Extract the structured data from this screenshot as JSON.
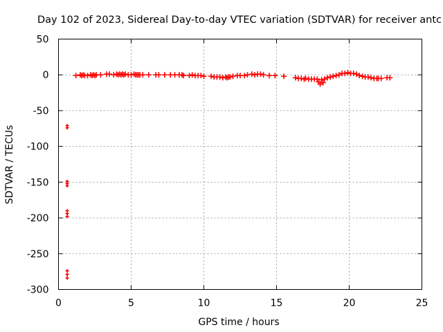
{
  "chart_data": {
    "type": "scatter",
    "title": "Day 102 of 2023, Sidereal Day-to-day VTEC variation (SDTVAR) for receiver antc",
    "xlabel": "GPS time / hours",
    "ylabel": "SDTVAR / TECUs",
    "xlim": [
      0,
      25
    ],
    "ylim": [
      -300,
      50
    ],
    "xticks": [
      0,
      5,
      10,
      15,
      20,
      25
    ],
    "yticks": [
      50,
      0,
      -50,
      -100,
      -150,
      -200,
      -250,
      -300
    ],
    "grid": true,
    "marker": "plus",
    "color": "#ff0000",
    "series": [
      {
        "name": "SDTVAR",
        "points": [
          [
            0.6,
            -71
          ],
          [
            0.6,
            -74
          ],
          [
            0.6,
            -149
          ],
          [
            0.6,
            -152
          ],
          [
            0.6,
            -155
          ],
          [
            0.6,
            -190
          ],
          [
            0.6,
            -194
          ],
          [
            0.6,
            -198
          ],
          [
            0.6,
            -274
          ],
          [
            0.6,
            -279
          ],
          [
            0.6,
            -284
          ],
          [
            1.2,
            -1
          ],
          [
            1.5,
            0
          ],
          [
            1.6,
            -1
          ],
          [
            1.7,
            0
          ],
          [
            1.8,
            -1
          ],
          [
            2.0,
            -1
          ],
          [
            2.2,
            0
          ],
          [
            2.3,
            -1
          ],
          [
            2.4,
            0
          ],
          [
            2.5,
            -1
          ],
          [
            2.6,
            0
          ],
          [
            2.9,
            0
          ],
          [
            3.3,
            1
          ],
          [
            3.5,
            1
          ],
          [
            3.8,
            0
          ],
          [
            4.0,
            1
          ],
          [
            4.1,
            0
          ],
          [
            4.2,
            1
          ],
          [
            4.3,
            0
          ],
          [
            4.4,
            1
          ],
          [
            4.5,
            0
          ],
          [
            4.6,
            1
          ],
          [
            4.8,
            0
          ],
          [
            5.0,
            0
          ],
          [
            5.2,
            1
          ],
          [
            5.3,
            0
          ],
          [
            5.4,
            0
          ],
          [
            5.5,
            0
          ],
          [
            5.6,
            0
          ],
          [
            5.8,
            0
          ],
          [
            6.2,
            0
          ],
          [
            6.7,
            0
          ],
          [
            6.9,
            0
          ],
          [
            7.3,
            0
          ],
          [
            7.7,
            0
          ],
          [
            8.0,
            0
          ],
          [
            8.3,
            0
          ],
          [
            8.5,
            0
          ],
          [
            8.6,
            -1
          ],
          [
            9.0,
            -1
          ],
          [
            9.2,
            0
          ],
          [
            9.4,
            -1
          ],
          [
            9.6,
            -1
          ],
          [
            9.8,
            -1
          ],
          [
            10.0,
            -2
          ],
          [
            10.5,
            -2
          ],
          [
            10.7,
            -3
          ],
          [
            10.9,
            -3
          ],
          [
            11.1,
            -3
          ],
          [
            11.3,
            -4
          ],
          [
            11.5,
            -3
          ],
          [
            11.6,
            -4
          ],
          [
            11.7,
            -3
          ],
          [
            11.8,
            -3
          ],
          [
            12.0,
            -2
          ],
          [
            12.3,
            -1
          ],
          [
            12.5,
            -1
          ],
          [
            12.8,
            -1
          ],
          [
            13.0,
            0
          ],
          [
            13.3,
            1
          ],
          [
            13.5,
            0
          ],
          [
            13.7,
            1
          ],
          [
            13.9,
            1
          ],
          [
            14.1,
            0
          ],
          [
            14.5,
            -1
          ],
          [
            14.9,
            -1
          ],
          [
            15.5,
            -2
          ],
          [
            16.3,
            -4
          ],
          [
            16.5,
            -5
          ],
          [
            16.7,
            -5
          ],
          [
            16.9,
            -6
          ],
          [
            17.0,
            -5
          ],
          [
            17.2,
            -6
          ],
          [
            17.4,
            -6
          ],
          [
            17.6,
            -6
          ],
          [
            17.8,
            -6
          ],
          [
            17.9,
            -10
          ],
          [
            18.0,
            -13
          ],
          [
            18.1,
            -7
          ],
          [
            18.2,
            -11
          ],
          [
            18.3,
            -6
          ],
          [
            18.5,
            -4
          ],
          [
            18.7,
            -3
          ],
          [
            18.9,
            -2
          ],
          [
            19.1,
            -1
          ],
          [
            19.3,
            0
          ],
          [
            19.5,
            2
          ],
          [
            19.7,
            2
          ],
          [
            19.9,
            3
          ],
          [
            20.1,
            2
          ],
          [
            20.3,
            2
          ],
          [
            20.5,
            1
          ],
          [
            20.7,
            -1
          ],
          [
            20.9,
            -2
          ],
          [
            21.1,
            -3
          ],
          [
            21.3,
            -3
          ],
          [
            21.5,
            -4
          ],
          [
            21.7,
            -5
          ],
          [
            21.9,
            -5
          ],
          [
            22.0,
            -5
          ],
          [
            22.2,
            -5
          ],
          [
            22.6,
            -4
          ],
          [
            22.8,
            -4
          ]
        ]
      }
    ]
  }
}
